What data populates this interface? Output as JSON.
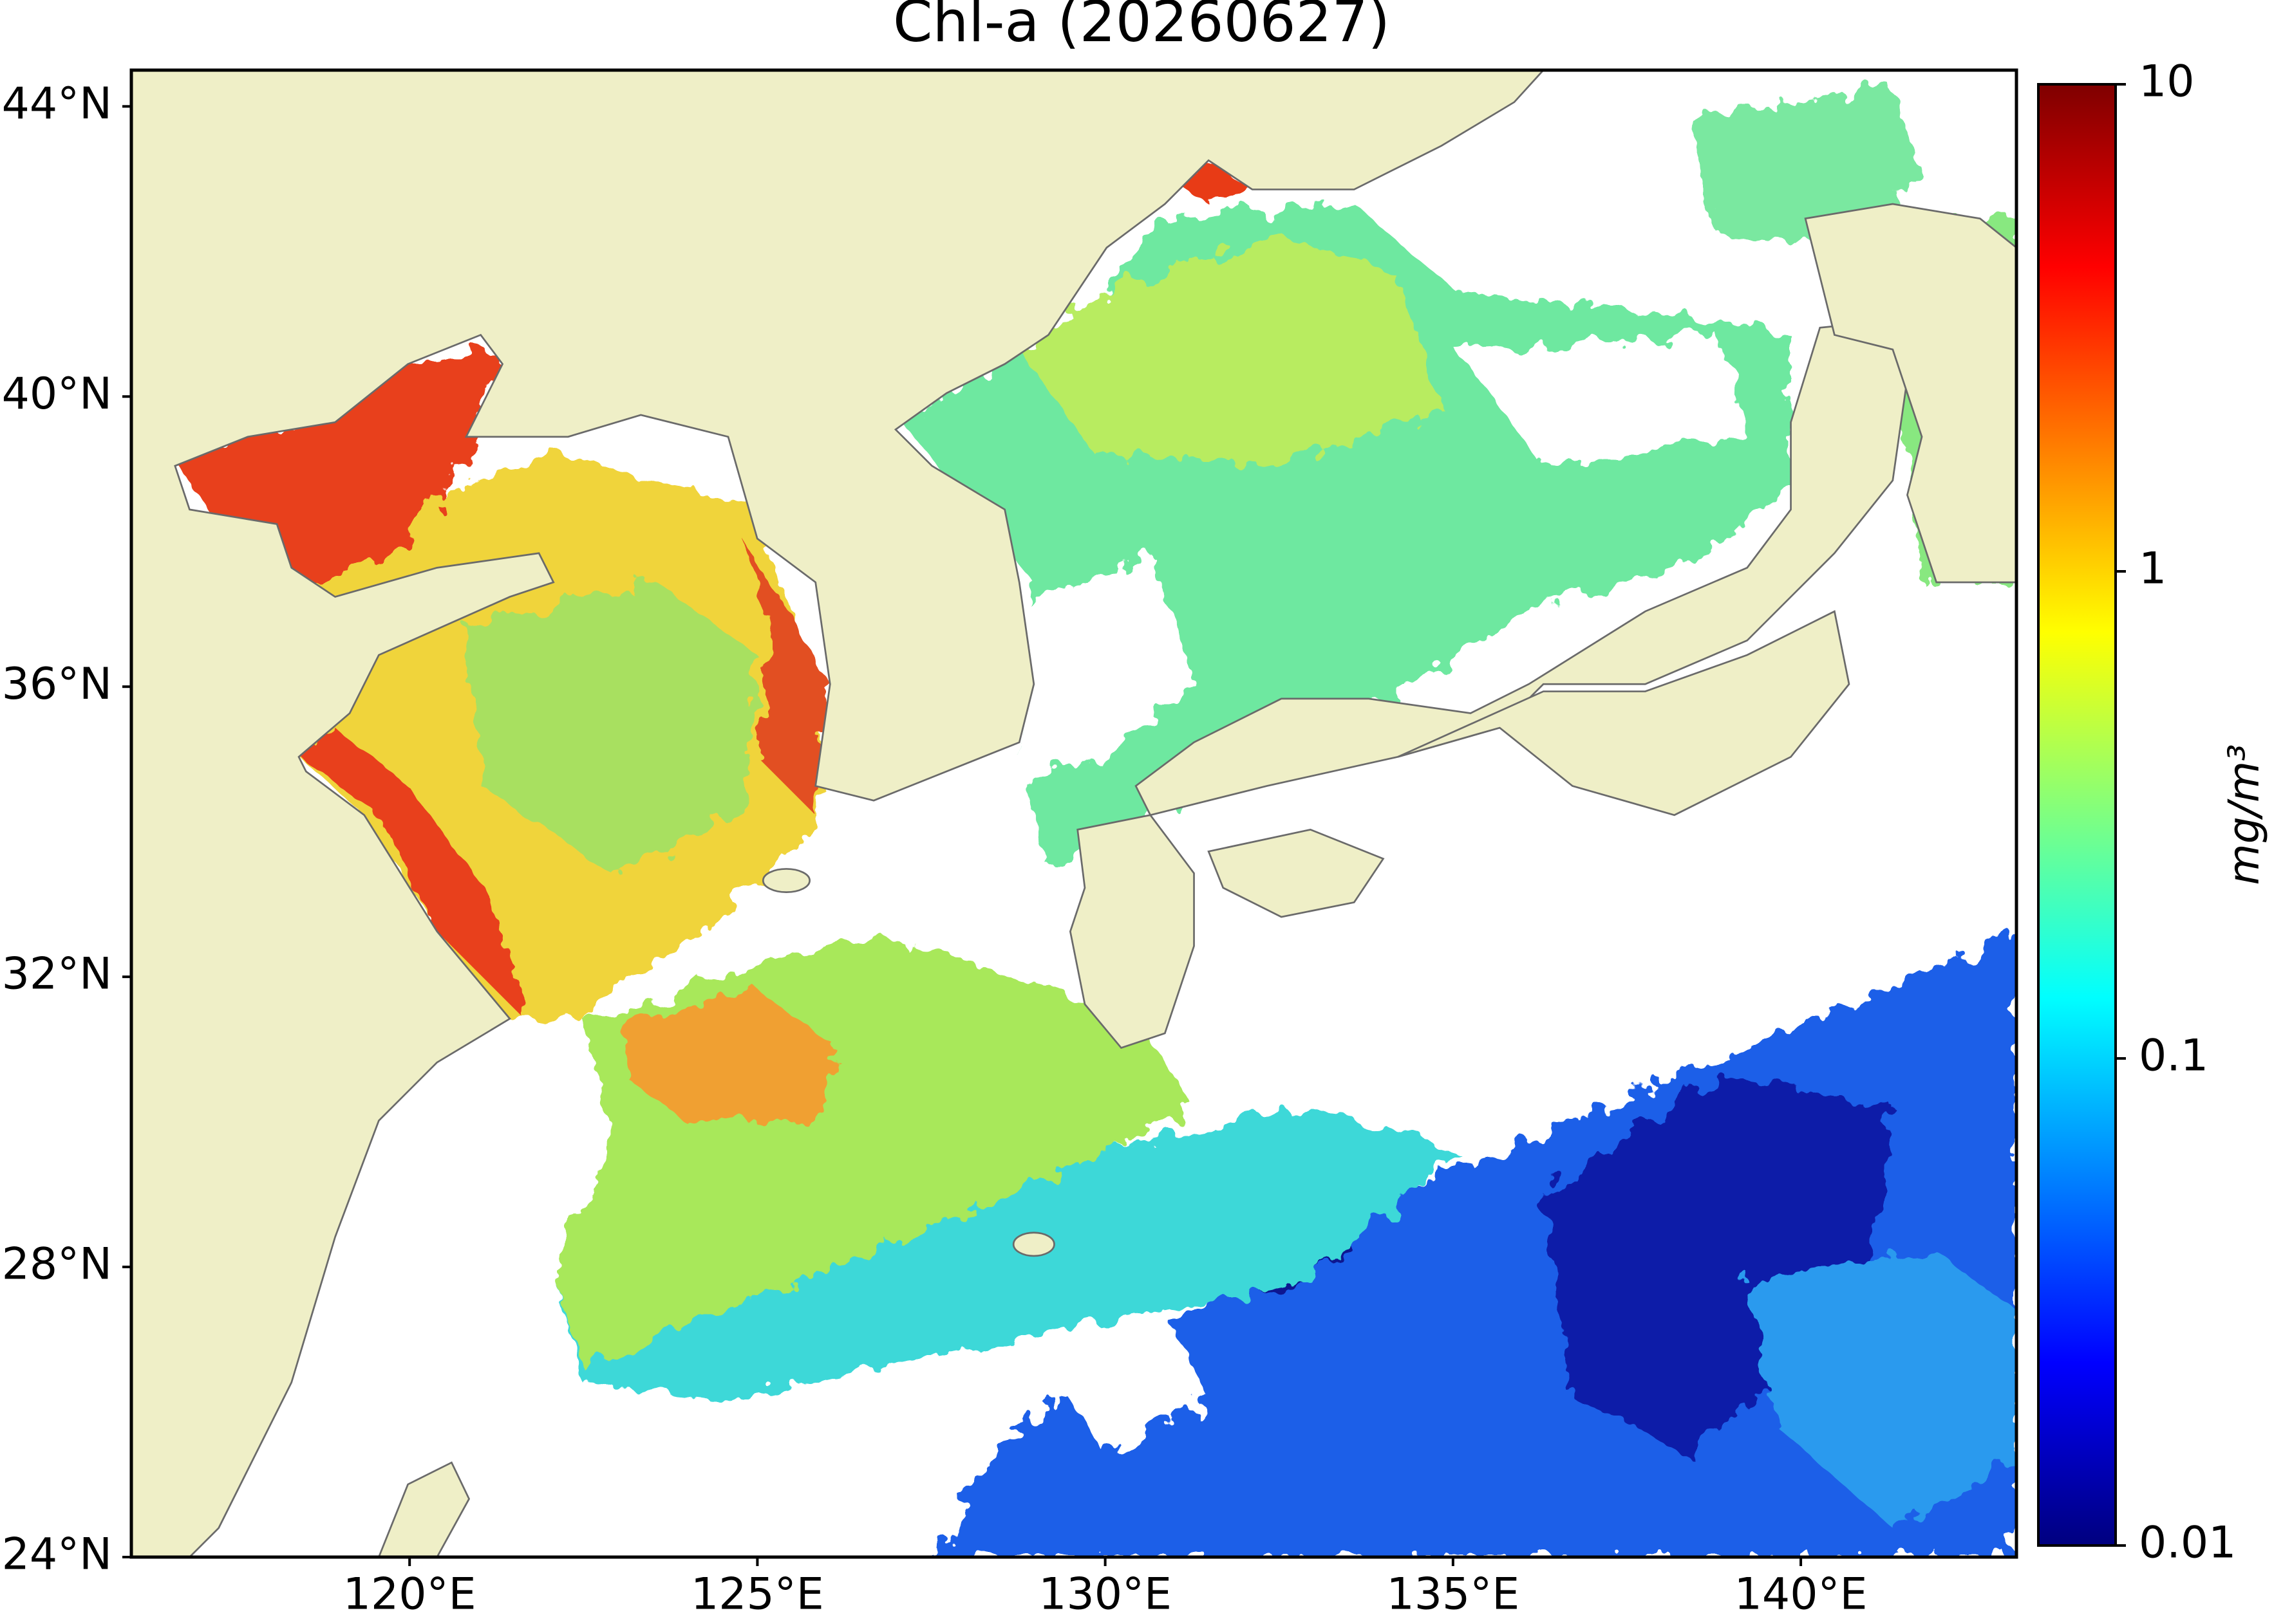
{
  "title": "Chl-a (20260627)",
  "map": {
    "xlim": [
      116,
      143.1
    ],
    "ylim": [
      24,
      44.5
    ],
    "xticks": [
      {
        "value": 120,
        "label": "120°E"
      },
      {
        "value": 125,
        "label": "125°E"
      },
      {
        "value": 130,
        "label": "130°E"
      },
      {
        "value": 135,
        "label": "135°E"
      },
      {
        "value": 140,
        "label": "140°E"
      }
    ],
    "yticks": [
      {
        "value": 24,
        "label": "24°N"
      },
      {
        "value": 28,
        "label": "28°N"
      },
      {
        "value": 32,
        "label": "32°N"
      },
      {
        "value": 36,
        "label": "36°N"
      },
      {
        "value": 40,
        "label": "40°N"
      },
      {
        "value": 44,
        "label": "44°N"
      }
    ]
  },
  "colorbar": {
    "label": "mg/m³",
    "scale": "log",
    "lim": [
      0.01,
      10
    ],
    "ticks": [
      0.01,
      0.1,
      1,
      10
    ]
  }
}
